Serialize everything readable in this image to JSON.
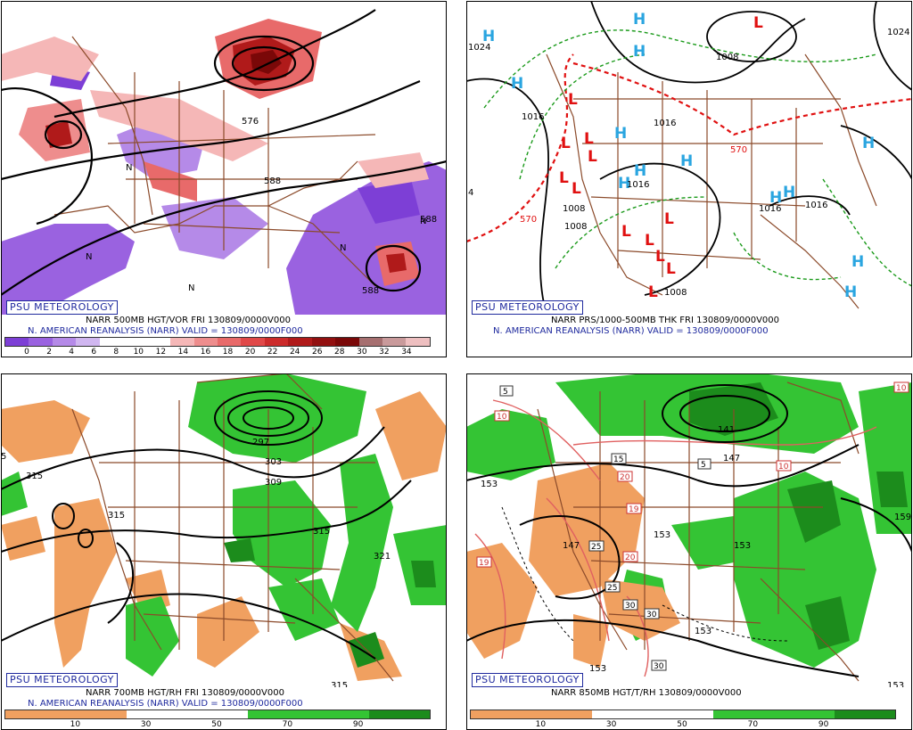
{
  "credit": "PSU METEOROLOGY",
  "panels": [
    {
      "line1": "NARR 500MB HGT/VOR FRI 130809/0000V000",
      "line2": "N. AMERICAN REANALYSIS (NARR) VALID = 130809/0000F000",
      "colorbar_ticks": [
        "0",
        "2",
        "4",
        "6",
        "8",
        "10",
        "12",
        "14",
        "16",
        "18",
        "20",
        "22",
        "24",
        "26",
        "28",
        "30",
        "32",
        "34"
      ],
      "contour_labels": [
        "576",
        "588",
        "588",
        "588"
      ],
      "symbol": "N"
    },
    {
      "line1": "NARR PRS/1000-500MB THK FRI 130809/0000V000",
      "line2": "N. AMERICAN REANALYSIS (NARR) VALID = 130809/0000F000",
      "high_symbol": "H",
      "low_symbol": "L",
      "contour_labels": [
        "1024",
        "1024",
        "1008",
        "1016",
        "1016",
        "1016",
        "1008",
        "1016",
        "1016",
        "1008",
        "1008",
        "570",
        "570",
        "4"
      ]
    },
    {
      "line1": "NARR 700MB HGT/RH FRI 130809/0000V000",
      "line2": "N. AMERICAN REANALYSIS (NARR) VALID = 130809/0000F000",
      "colorbar_ticks": [
        "10",
        "30",
        "50",
        "70",
        "90"
      ],
      "contour_labels": [
        "315",
        "315",
        "297",
        "303",
        "309",
        "315",
        "321",
        "315",
        "5"
      ]
    },
    {
      "line1": "NARR 850MB HGT/T/RH 130809/0000V000",
      "colorbar_ticks": [
        "10",
        "30",
        "50",
        "70",
        "90"
      ],
      "contour_labels": [
        "153",
        "141",
        "147",
        "147",
        "153",
        "153",
        "153",
        "153",
        "153",
        "159"
      ],
      "temp_boxes": [
        "5",
        "10",
        "15",
        "20",
        "5",
        "10",
        "10",
        "19",
        "25",
        "20",
        "25",
        "30",
        "30",
        "19",
        "30"
      ]
    }
  ],
  "colors": {
    "vort_scale": [
      "#7d3fd6",
      "#9a62e0",
      "#b58ae8",
      "#d0b6f0",
      "#ffffff",
      "#ffffff",
      "#ffffff",
      "#f5b7b7",
      "#ee8d8d",
      "#e86a6a",
      "#e04848",
      "#cc2b2b",
      "#b01a1a",
      "#921010",
      "#7a0808",
      "#a66f70",
      "#c99a9b",
      "#eebfc0"
    ],
    "rh_scale": [
      "#f0a060",
      "#f0a060",
      "#ffffff",
      "#ffffff",
      "#34c434",
      "#34c434",
      "#1c8c1c"
    ],
    "state_lines": "#8b4a2a",
    "thickness_warm": "#e01010",
    "thickness_cool": "#1a9a1a",
    "high": "#2aa5e0",
    "low": "#e01010",
    "credit": "#1f2a9e"
  }
}
